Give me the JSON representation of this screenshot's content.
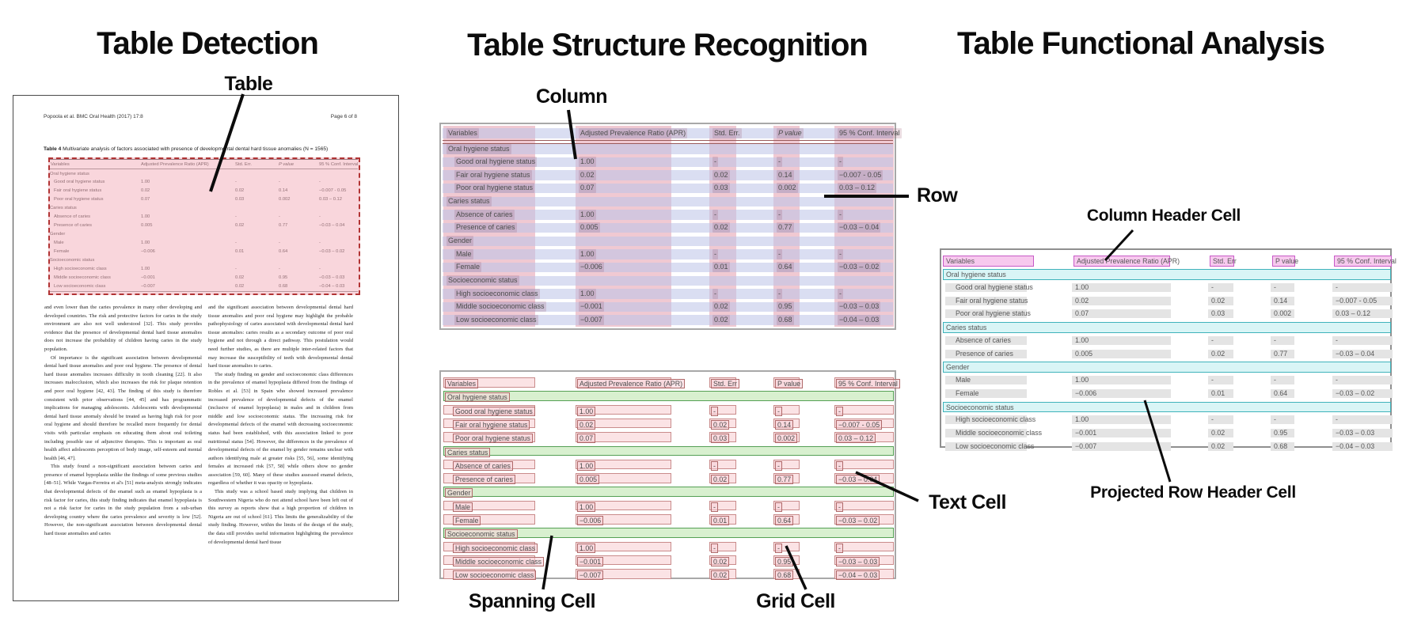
{
  "panels": {
    "detection": {
      "title": "Table Detection",
      "callout_table": "Table"
    },
    "structure": {
      "title": "Table Structure Recognition",
      "callout_column": "Column",
      "callout_row": "Row",
      "callout_spanning": "Spanning Cell",
      "callout_grid": "Grid Cell",
      "callout_text": "Text Cell"
    },
    "functional": {
      "title": "Table Functional Analysis",
      "callout_column_header": "Column Header Cell",
      "callout_projected_row_header": "Projected Row Header Cell"
    }
  },
  "document": {
    "journal_header": "Popoola et al. BMC Oral Health  (2017) 17:8",
    "page_number": "Page 6 of 8",
    "caption_label": "Table 4",
    "caption_text": " Multivariate analysis of factors associated with presence of developmental dental hard tissue anomalies (N = 1565)",
    "body_left": [
      "and even lower than the caries prevalence in many other developing and developed countries. The risk and protective factors for caries in the study environment are also not well understood [32]. This study provides evidence that the presence of developmental dental hard tissue anomalies does not increase the probability of children having caries in the study population.",
      "Of importance is the significant association between developmental dental hard tissue anomalies and poor oral hygiene. The presence of dental hard tissue anomalies increases difficulty in tooth cleaning [22]. It also increases malocclusion, which also increases the risk for plaque retention and poor oral hygiene [42, 43]. The finding of this study is therefore consistent with prior observations [44, 45] and has programmatic implications for managing adolescents. Adolescents with developmental dental hard tissue anomaly should be treated as having high risk for poor oral hygiene and should therefore be recalled more frequently for dental visits with particular emphasis on educating them about oral toileting including possible use of adjunctive therapies. This is important as oral health affect adolescents perception of body image, self-esteem and mental health [46, 47].",
      "This study found a non-significant association between caries and presence of enamel hypoplasia unlike the findings of some previous studies [48–51]. While Vargas-Ferreira et al's [51] meta-analysis strongly indicates that developmental defects of the enamel such as enamel hypoplasia is a risk factor for caries, this study finding indicates that enamel hypoplasia is not a risk factor for caries in the study population from a sub-urban developing country where the caries prevalence and severity is low [52]. However, the non-significant association between developmental dental hard tissue anomalies and caries"
    ],
    "body_right": [
      "and the significant association between developmental dental hard tissue anomalies and poor oral hygiene may highlight the probable pathophysiology of caries associated with developmental dental hard tissue anomalies: caries results as a secondary outcome of poor oral hygiene and not through a direct pathway. This postulation would need further studies, as there are multiple inter-related factors that may increase the susceptibility of teeth with developmental dental hard tissue anomalies to caries.",
      "The study finding on gender and socioeconomic class differences in the prevalence of enamel hypoplasia differed from the findings of Robles et al. [53] in Spain who showed increased prevalence increased prevalence of developmental defects of the enamel (inclusive of enamel hypoplasia) in males and in children from middle and low socioeconomic status. The increasing risk for developmental defects of the enamel with decreasing socioeconomic status had been established, with this association linked to poor nutritional status [54]. However, the differences in the prevalence of developmental defects of the enamel by gender remains unclear with authors identifying male at greater risks [55, 56], some identifying females at increased risk [57, 58] while others show no gender association [59, 60]. Many of these studies assessed enamel defects, regardless of whether it was opacity or hypoplasia.",
      "This study was a school based study implying that children in Southwestern Nigeria who do not attend school have been left out of this survey as reports show that a high proportion of children in Nigeria are out of school [61]. This limits the generalizability of the study finding. However, within the limits of the design of the study, the data still provides useful information highlighting the prevalence of developmental dental hard tissue"
    ]
  },
  "table": {
    "columns": [
      "Variables",
      "Adjusted Prevalence Ratio (APR)",
      "Std. Err.",
      "P value",
      "95 % Conf. Interval"
    ],
    "std_err_short": "Std. Err",
    "rows": [
      {
        "type": "section",
        "label": "Oral hygiene status",
        "values": [
          "",
          "",
          "",
          ""
        ]
      },
      {
        "type": "data",
        "label": "Good oral hygiene status",
        "values": [
          "1.00",
          "-",
          "-",
          "-"
        ]
      },
      {
        "type": "data",
        "label": "Fair oral hygiene status",
        "values": [
          "0.02",
          "0.02",
          "0.14",
          "−0.007 - 0.05"
        ]
      },
      {
        "type": "data",
        "label": "Poor oral hygiene status",
        "values": [
          "0.07",
          "0.03",
          "0.002",
          "0.03 – 0.12"
        ]
      },
      {
        "type": "section",
        "label": "Caries status",
        "values": [
          "",
          "",
          "",
          ""
        ]
      },
      {
        "type": "data",
        "label": "Absence of caries",
        "values": [
          "1.00",
          "-",
          "-",
          "-"
        ]
      },
      {
        "type": "data",
        "label": "Presence of caries",
        "values": [
          "0.005",
          "0.02",
          "0.77",
          "−0.03 – 0.04"
        ]
      },
      {
        "type": "section",
        "label": "Gender",
        "values": [
          "",
          "",
          "",
          ""
        ]
      },
      {
        "type": "data",
        "label": "Male",
        "values": [
          "1.00",
          "-",
          "-",
          "-"
        ]
      },
      {
        "type": "data",
        "label": "Female",
        "values": [
          "−0.006",
          "0.01",
          "0.64",
          "−0.03 – 0.02"
        ]
      },
      {
        "type": "section",
        "label": "Socioeconomic status",
        "values": [
          "",
          "",
          "",
          ""
        ]
      },
      {
        "type": "data",
        "label": "High socioeconomic class",
        "values": [
          "1.00",
          "-",
          "-",
          "-"
        ]
      },
      {
        "type": "data",
        "label": "Middle socioeconomic class",
        "values": [
          "−0.001",
          "0.02",
          "0.95",
          "−0.03 – 0.03"
        ]
      },
      {
        "type": "data",
        "label": "Low socioeconomic class",
        "values": [
          "−0.007",
          "0.02",
          "0.68",
          "−0.04 – 0.03"
        ]
      }
    ]
  },
  "colors": {
    "column_band_pink": "#e294a6",
    "row_band_lavender": "#bcc2e8",
    "detection_fill": "#f3a8b5",
    "detection_border": "#b13434",
    "grid_cell_fill": "#fbe3e5",
    "grid_cell_border": "#c98b8b",
    "spanning_cell_fill": "#d8f0cf",
    "spanning_cell_border": "#55a055",
    "text_cell_border": "#b06a6a",
    "column_header_fill": "#f7c9ee",
    "column_header_border": "#c75ac7",
    "projected_row_fill": "#d9f5f6",
    "projected_row_border": "#3fb3bb",
    "plain_cell_gray": "#e4e4e4"
  }
}
